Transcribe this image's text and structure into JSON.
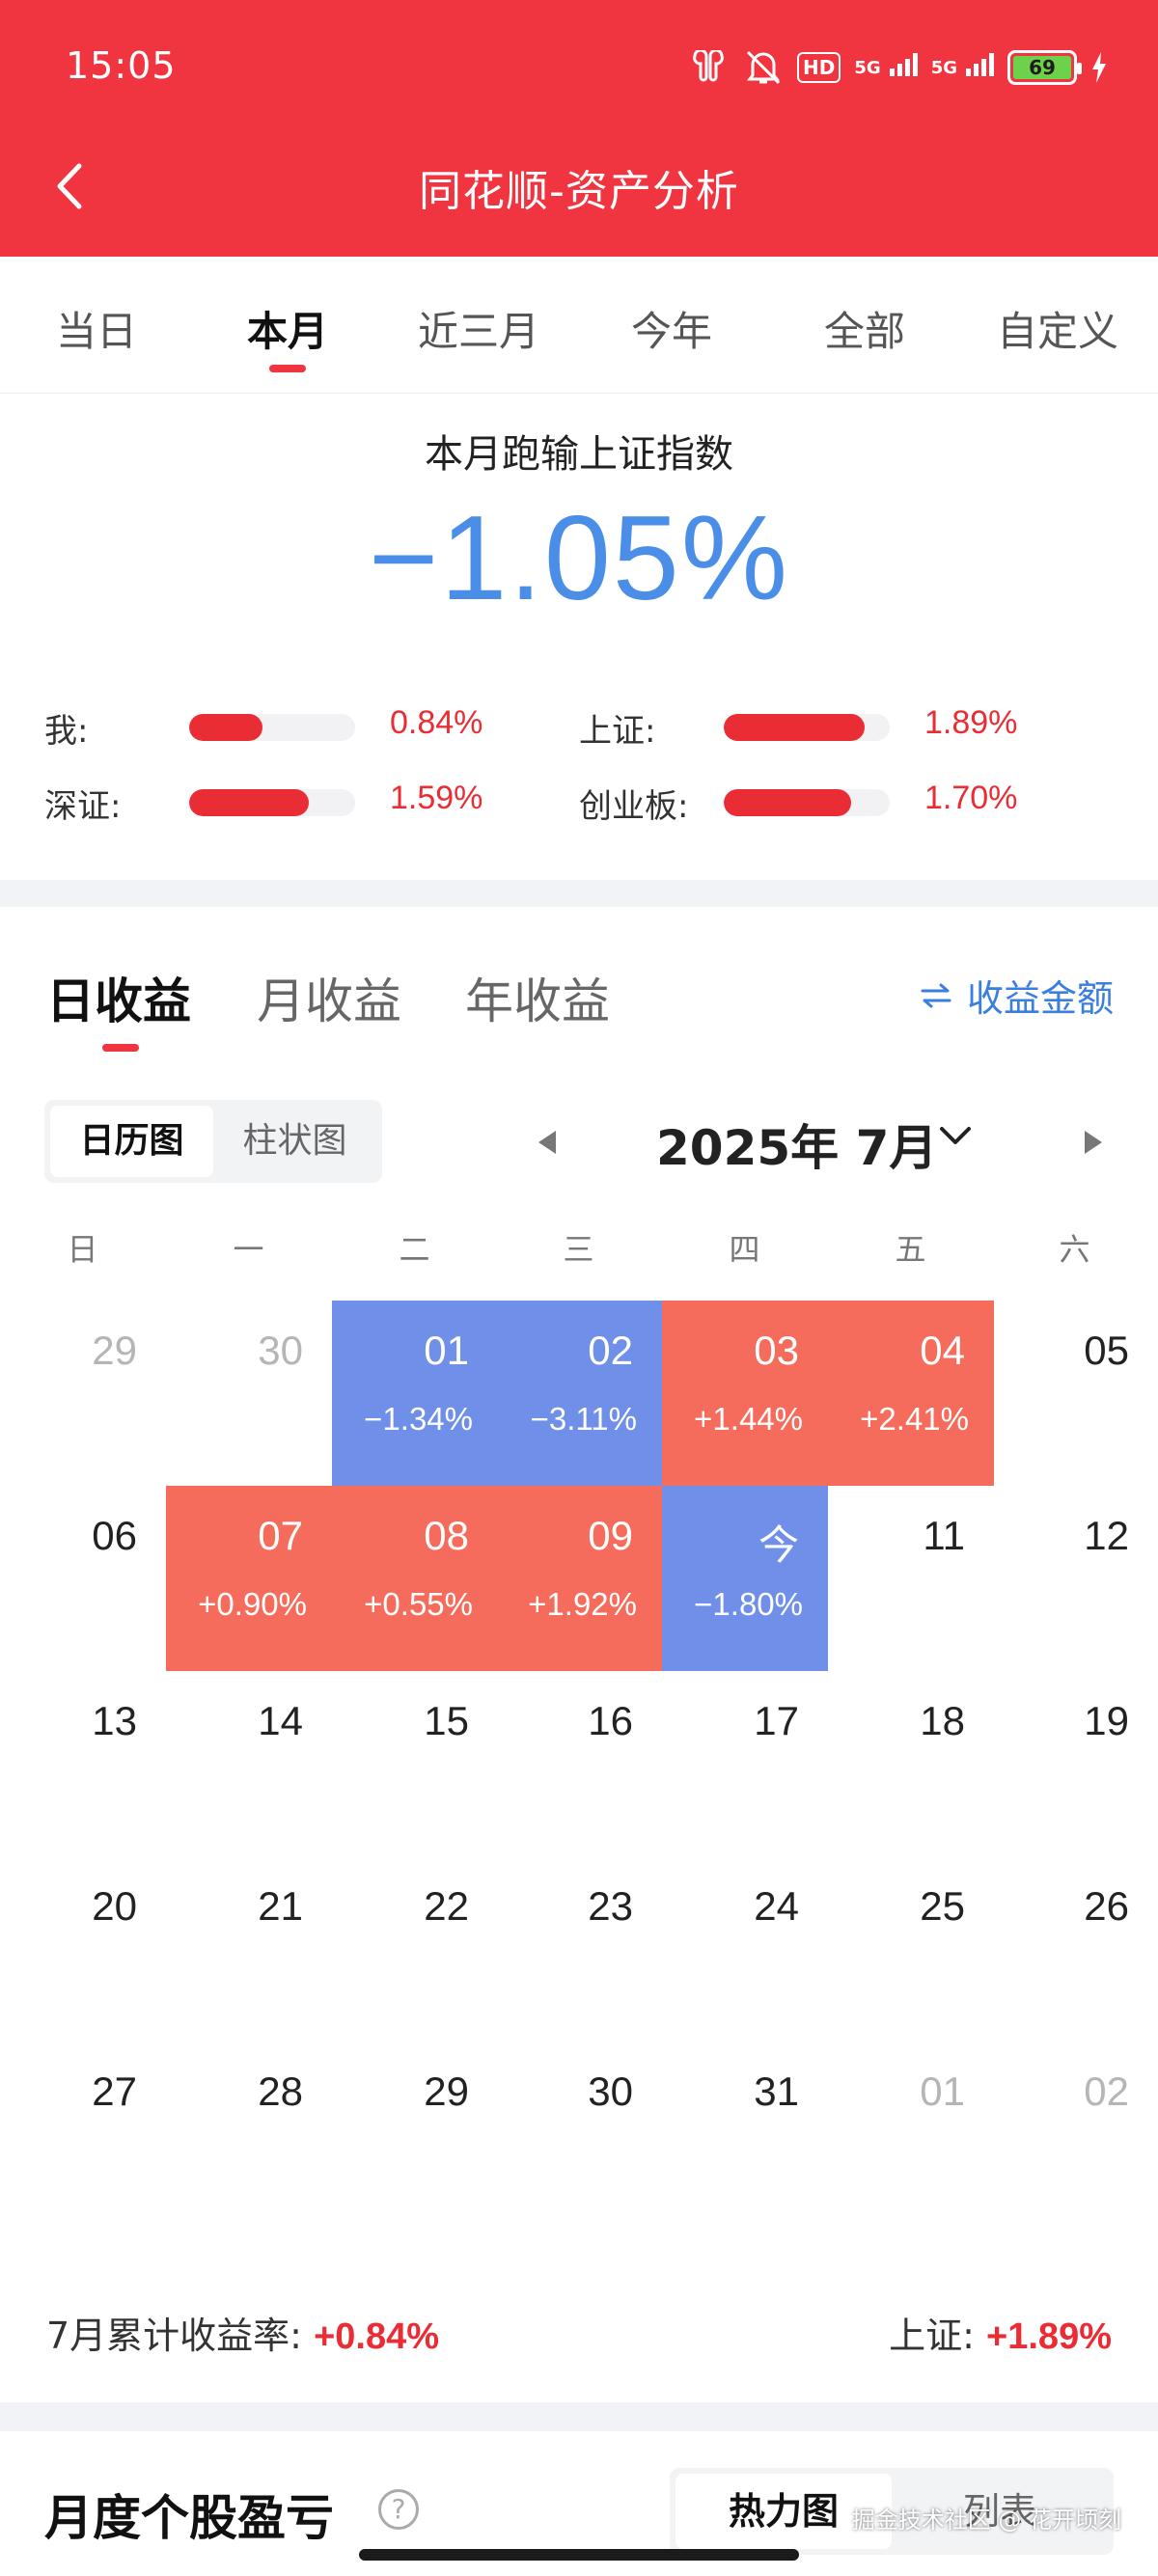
{
  "status_bar": {
    "time": "15:05",
    "hd_label": "HD",
    "network1": "5G",
    "network2": "5G",
    "battery": "69"
  },
  "nav": {
    "title": "同花顺-资产分析"
  },
  "period_tabs": [
    "当日",
    "本月",
    "近三月",
    "今年",
    "全部",
    "自定义"
  ],
  "comparison": {
    "title": "本月跑输上证指数",
    "diff": "−1.05%",
    "rows": [
      {
        "label": "我:",
        "value": "0.84%",
        "fill": 0.44
      },
      {
        "label": "上证:",
        "value": "1.89%",
        "fill": 0.85
      },
      {
        "label": "深证:",
        "value": "1.59%",
        "fill": 0.72
      },
      {
        "label": "创业板:",
        "value": "1.70%",
        "fill": 0.77
      }
    ]
  },
  "earnings": {
    "tabs": [
      "日收益",
      "月收益",
      "年收益"
    ],
    "amount_toggle": "收益金额",
    "view_modes": [
      "日历图",
      "柱状图"
    ],
    "month": "2025年 7月",
    "weekdays": [
      "日",
      "一",
      "二",
      "三",
      "四",
      "五",
      "六"
    ],
    "calendar": [
      [
        {
          "d": "29",
          "m": 1
        },
        {
          "d": "30",
          "m": 1
        },
        {
          "d": "01",
          "p": "−1.34%",
          "t": "neg"
        },
        {
          "d": "02",
          "p": "−3.11%",
          "t": "neg"
        },
        {
          "d": "03",
          "p": "+1.44%",
          "t": "pos"
        },
        {
          "d": "04",
          "p": "+2.41%",
          "t": "pos"
        },
        {
          "d": "05"
        }
      ],
      [
        {
          "d": "06"
        },
        {
          "d": "07",
          "p": "+0.90%",
          "t": "pos"
        },
        {
          "d": "08",
          "p": "+0.55%",
          "t": "pos"
        },
        {
          "d": "09",
          "p": "+1.92%",
          "t": "pos"
        },
        {
          "d": "今",
          "p": "−1.80%",
          "t": "neg"
        },
        {
          "d": "11"
        },
        {
          "d": "12"
        }
      ],
      [
        {
          "d": "13"
        },
        {
          "d": "14"
        },
        {
          "d": "15"
        },
        {
          "d": "16"
        },
        {
          "d": "17"
        },
        {
          "d": "18"
        },
        {
          "d": "19"
        }
      ],
      [
        {
          "d": "20"
        },
        {
          "d": "21"
        },
        {
          "d": "22"
        },
        {
          "d": "23"
        },
        {
          "d": "24"
        },
        {
          "d": "25"
        },
        {
          "d": "26"
        }
      ],
      [
        {
          "d": "27"
        },
        {
          "d": "28"
        },
        {
          "d": "29"
        },
        {
          "d": "30"
        },
        {
          "d": "31"
        },
        {
          "d": "01",
          "m": 1
        },
        {
          "d": "02",
          "m": 1
        }
      ]
    ],
    "footer_label": "7月累计收益率:",
    "footer_value": "+0.84%",
    "index_label": "上证:",
    "index_value": "+1.89%"
  },
  "monthly_pnl": {
    "title": "月度个股盈亏",
    "help": "?",
    "modes": [
      "热力图",
      "列表"
    ]
  },
  "watermark": "掘金技术社区 @ 花开顷刻",
  "colors": {
    "brand": "#f13540",
    "gain": "#ea2d35",
    "loss_cell": "#6f8fe8",
    "gain_cell": "#f66c5c",
    "accent": "#3a7ee0"
  }
}
